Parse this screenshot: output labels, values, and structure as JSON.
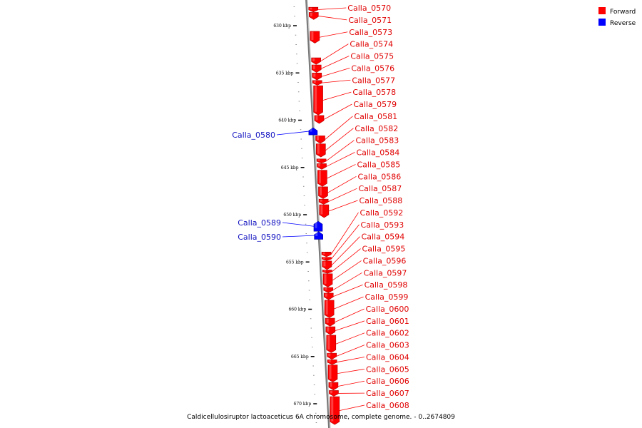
{
  "legend": {
    "items": [
      {
        "label": "Forward",
        "color": "#ff0000"
      },
      {
        "label": "Reverse",
        "color": "#0000ff"
      }
    ]
  },
  "caption": "Caldicellulosiruptor lactoaceticus 6A chromosome, complete genome. - 0..2674809",
  "ticks": [
    {
      "label": "630 kbp",
      "kbp": 630
    },
    {
      "label": "635 kbp",
      "kbp": 635
    },
    {
      "label": "640 kbp",
      "kbp": 640
    },
    {
      "label": "645 kbp",
      "kbp": 645
    },
    {
      "label": "650 kbp",
      "kbp": 650
    },
    {
      "label": "655 kbp",
      "kbp": 655
    },
    {
      "label": "660 kbp",
      "kbp": 660
    },
    {
      "label": "665 kbp",
      "kbp": 665
    },
    {
      "label": "670 kbp",
      "kbp": 670
    }
  ],
  "genes": [
    {
      "name": "Calla_0570",
      "strand": "forward",
      "start_kbp": 628.05,
      "end_kbp": 628.55
    },
    {
      "name": "Calla_0571",
      "strand": "forward",
      "start_kbp": 628.6,
      "end_kbp": 629.35
    },
    {
      "name": "Calla_0573",
      "strand": "forward",
      "start_kbp": 630.6,
      "end_kbp": 631.85
    },
    {
      "name": "Calla_0574",
      "strand": "forward",
      "start_kbp": 633.4,
      "end_kbp": 634.1
    },
    {
      "name": "Calla_0575",
      "strand": "forward",
      "start_kbp": 634.15,
      "end_kbp": 634.95
    },
    {
      "name": "Calla_0576",
      "strand": "forward",
      "start_kbp": 635.0,
      "end_kbp": 635.75
    },
    {
      "name": "Calla_0577",
      "strand": "forward",
      "start_kbp": 635.8,
      "end_kbp": 636.3
    },
    {
      "name": "Calla_0578",
      "strand": "forward",
      "start_kbp": 636.35,
      "end_kbp": 639.45
    },
    {
      "name": "Calla_0579",
      "strand": "forward",
      "start_kbp": 639.5,
      "end_kbp": 640.35
    },
    {
      "name": "Calla_0580",
      "strand": "reverse",
      "start_kbp": 640.8,
      "end_kbp": 641.55
    },
    {
      "name": "Calla_0581",
      "strand": "forward",
      "start_kbp": 641.65,
      "end_kbp": 642.45
    },
    {
      "name": "Calla_0582",
      "strand": "forward",
      "start_kbp": 642.5,
      "end_kbp": 643.9
    },
    {
      "name": "Calla_0583",
      "strand": "forward",
      "start_kbp": 644.1,
      "end_kbp": 644.55
    },
    {
      "name": "Calla_0584",
      "strand": "forward",
      "start_kbp": 644.6,
      "end_kbp": 645.2
    },
    {
      "name": "Calla_0585",
      "strand": "forward",
      "start_kbp": 645.3,
      "end_kbp": 647.0
    },
    {
      "name": "Calla_0586",
      "strand": "forward",
      "start_kbp": 647.05,
      "end_kbp": 648.3
    },
    {
      "name": "Calla_0587",
      "strand": "forward",
      "start_kbp": 648.35,
      "end_kbp": 648.9
    },
    {
      "name": "Calla_0588",
      "strand": "forward",
      "start_kbp": 648.95,
      "end_kbp": 650.3
    },
    {
      "name": "Calla_0589",
      "strand": "reverse",
      "start_kbp": 650.7,
      "end_kbp": 651.75
    },
    {
      "name": "Calla_0590",
      "strand": "reverse",
      "start_kbp": 651.8,
      "end_kbp": 652.6
    },
    {
      "name": "Calla_0592",
      "strand": "forward",
      "start_kbp": 653.95,
      "end_kbp": 654.45
    },
    {
      "name": "Calla_0593",
      "strand": "forward",
      "start_kbp": 654.5,
      "end_kbp": 654.85
    },
    {
      "name": "Calla_0594",
      "strand": "forward",
      "start_kbp": 654.9,
      "end_kbp": 655.8
    },
    {
      "name": "Calla_0595",
      "strand": "forward",
      "start_kbp": 655.85,
      "end_kbp": 656.2
    },
    {
      "name": "Calla_0596",
      "strand": "forward",
      "start_kbp": 656.25,
      "end_kbp": 657.65
    },
    {
      "name": "Calla_0597",
      "strand": "forward",
      "start_kbp": 657.7,
      "end_kbp": 658.25
    },
    {
      "name": "Calla_0598",
      "strand": "forward",
      "start_kbp": 658.3,
      "end_kbp": 659.0
    },
    {
      "name": "Calla_0599",
      "strand": "forward",
      "start_kbp": 659.05,
      "end_kbp": 660.9
    },
    {
      "name": "Calla_0600",
      "strand": "forward",
      "start_kbp": 660.95,
      "end_kbp": 661.8
    },
    {
      "name": "Calla_0601",
      "strand": "forward",
      "start_kbp": 661.85,
      "end_kbp": 662.7
    },
    {
      "name": "Calla_0602",
      "strand": "forward",
      "start_kbp": 662.75,
      "end_kbp": 664.6
    },
    {
      "name": "Calla_0603",
      "strand": "forward",
      "start_kbp": 664.65,
      "end_kbp": 665.3
    },
    {
      "name": "Calla_0604",
      "strand": "forward",
      "start_kbp": 665.35,
      "end_kbp": 665.85
    },
    {
      "name": "Calla_0605",
      "strand": "forward",
      "start_kbp": 665.9,
      "end_kbp": 667.7
    },
    {
      "name": "Calla_0606",
      "strand": "forward",
      "start_kbp": 667.75,
      "end_kbp": 668.55
    },
    {
      "name": "Calla_0607",
      "strand": "forward",
      "start_kbp": 668.6,
      "end_kbp": 669.2
    },
    {
      "name": "Calla_0608",
      "strand": "forward",
      "start_kbp": 669.25,
      "end_kbp": 672.2
    }
  ]
}
